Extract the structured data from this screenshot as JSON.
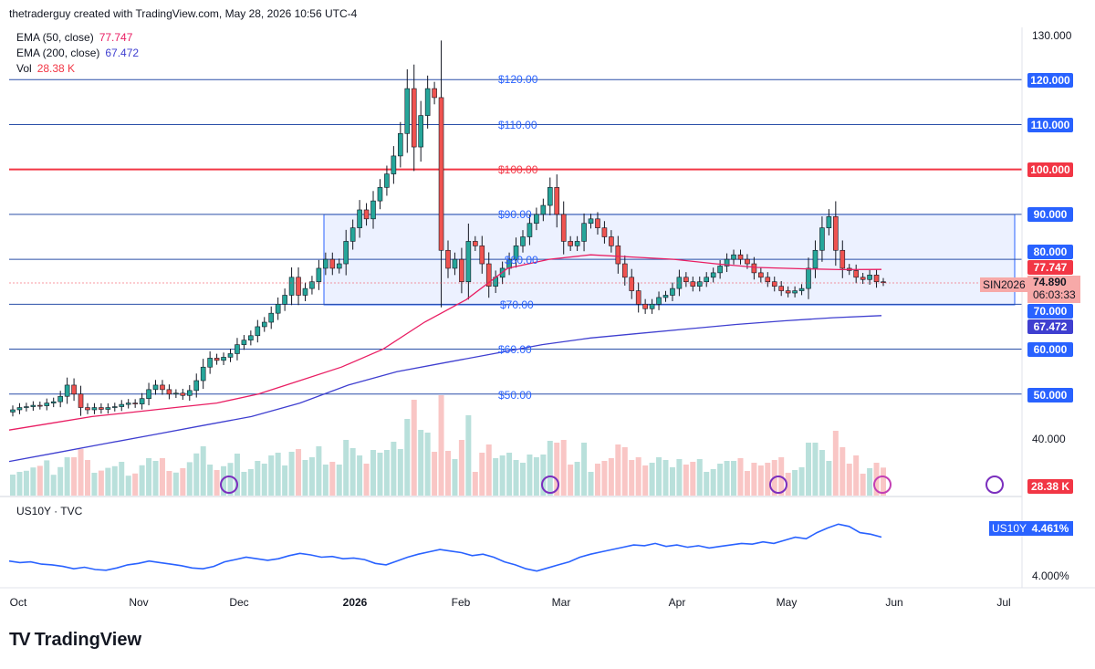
{
  "header": {
    "credit": "thetraderguy created with TradingView.com, May 28, 2026 10:56 UTC-4"
  },
  "legend": {
    "ema50": {
      "label": "EMA (50, close)",
      "value": "77.747",
      "color": "#e91e63"
    },
    "ema200": {
      "label": "EMA (200, close)",
      "value": "67.472",
      "color": "#3f3fd0"
    },
    "vol": {
      "label": "Vol",
      "value": "28.38 K",
      "color": "#f23645"
    }
  },
  "symbol_tag": "SIN2026",
  "last_price": {
    "value": "74.890",
    "countdown": "06:03:33"
  },
  "price_axis": {
    "ticks": [
      "130.000",
      "40.000"
    ],
    "tags": [
      {
        "label": "120.000",
        "color": "#2962ff"
      },
      {
        "label": "110.000",
        "color": "#2962ff"
      },
      {
        "label": "100.000",
        "color": "#f23645"
      },
      {
        "label": "90.000",
        "color": "#2962ff"
      },
      {
        "label": "80.000",
        "color": "#2962ff"
      },
      {
        "label": "77.747",
        "color": "#f23645"
      },
      {
        "label": "70.000",
        "color": "#2962ff"
      },
      {
        "label": "67.472",
        "color": "#3f3fd0"
      },
      {
        "label": "60.000",
        "color": "#2962ff"
      },
      {
        "label": "50.000",
        "color": "#2962ff"
      },
      {
        "label": "28.38 K",
        "color": "#f23645"
      }
    ]
  },
  "level_labels": [
    "$120.00",
    "$110.00",
    "$100.00",
    "$90.00",
    "$80.00",
    "$70.00",
    "$60.00",
    "$50.00"
  ],
  "x_axis": {
    "months": [
      "Oct",
      "Nov",
      "Dec",
      "2026",
      "Feb",
      "Mar",
      "Apr",
      "May",
      "Jun",
      "Jul"
    ]
  },
  "sub_pane": {
    "legend": "US10Y · TVC",
    "tag_label": "US10Y",
    "tag_value": "4.461%",
    "ticks": [
      "4.000%"
    ]
  },
  "brand": "TradingView",
  "chart_data": {
    "type": "candlestick",
    "symbol": "SIN2026",
    "ylim": [
      37,
      132
    ],
    "horizontal_levels": [
      120,
      110,
      100,
      90,
      80,
      70,
      60,
      50
    ],
    "range_box": [
      70,
      90
    ],
    "closes": [
      46.5,
      47,
      47.2,
      47.5,
      47.4,
      48,
      48.3,
      49.5,
      52,
      50,
      47,
      46.5,
      47,
      46.6,
      47,
      47.2,
      47.7,
      48,
      47.8,
      49,
      51,
      52,
      51,
      50,
      50.2,
      49.7,
      50.8,
      53,
      56,
      58,
      57.5,
      58.2,
      59,
      61,
      62,
      63,
      65,
      66,
      68,
      70,
      72,
      76,
      72,
      73.5,
      75,
      78,
      80,
      78,
      79,
      84,
      87,
      91,
      89,
      93,
      96,
      99,
      103,
      108,
      118,
      105,
      112,
      118,
      116,
      82,
      78,
      80,
      75,
      84,
      83,
      79,
      74,
      76,
      78,
      80,
      83,
      85,
      88,
      90,
      92,
      96,
      90,
      84,
      83,
      84,
      88,
      89,
      87,
      85,
      83,
      79,
      76,
      73,
      70,
      69,
      70,
      71.5,
      72,
      73.5,
      76,
      75,
      74,
      75,
      76,
      77,
      78.5,
      80,
      81,
      80,
      79,
      77,
      76,
      75,
      74,
      73,
      72.5,
      73,
      73.5,
      78,
      82,
      87,
      89.5,
      82,
      78,
      77.5,
      76,
      75.5,
      76.5,
      75,
      74.89
    ],
    "ema50": [
      42,
      43.5,
      45,
      46,
      47,
      48,
      50,
      53,
      56,
      60,
      66,
      71,
      78,
      80,
      81,
      80.5,
      80,
      79,
      78.2,
      77.9,
      77.7,
      77.747
    ],
    "ema200": [
      35,
      37,
      39,
      41,
      43,
      45,
      48,
      52,
      55,
      57,
      59,
      61,
      62.5,
      63.5,
      64.5,
      65.5,
      66.3,
      67,
      67.472
    ],
    "volume_unit": "K",
    "last_volume": 28.38,
    "sub_series": {
      "name": "US10Y",
      "ylim": [
        3.85,
        4.8
      ],
      "values": [
        4.15,
        4.13,
        4.14,
        4.11,
        4.1,
        4.08,
        4.05,
        4.07,
        4.04,
        4.03,
        4.06,
        4.1,
        4.12,
        4.15,
        4.13,
        4.11,
        4.09,
        4.06,
        4.05,
        4.08,
        4.14,
        4.17,
        4.2,
        4.18,
        4.16,
        4.18,
        4.22,
        4.25,
        4.23,
        4.2,
        4.21,
        4.18,
        4.19,
        4.17,
        4.12,
        4.1,
        4.15,
        4.2,
        4.24,
        4.27,
        4.3,
        4.28,
        4.26,
        4.22,
        4.24,
        4.2,
        4.14,
        4.1,
        4.05,
        4.02,
        4.06,
        4.1,
        4.14,
        4.2,
        4.24,
        4.27,
        4.3,
        4.33,
        4.36,
        4.35,
        4.38,
        4.34,
        4.36,
        4.33,
        4.35,
        4.32,
        4.34,
        4.36,
        4.38,
        4.37,
        4.4,
        4.38,
        4.42,
        4.46,
        4.44,
        4.52,
        4.58,
        4.63,
        4.6,
        4.52,
        4.5,
        4.461
      ]
    }
  }
}
